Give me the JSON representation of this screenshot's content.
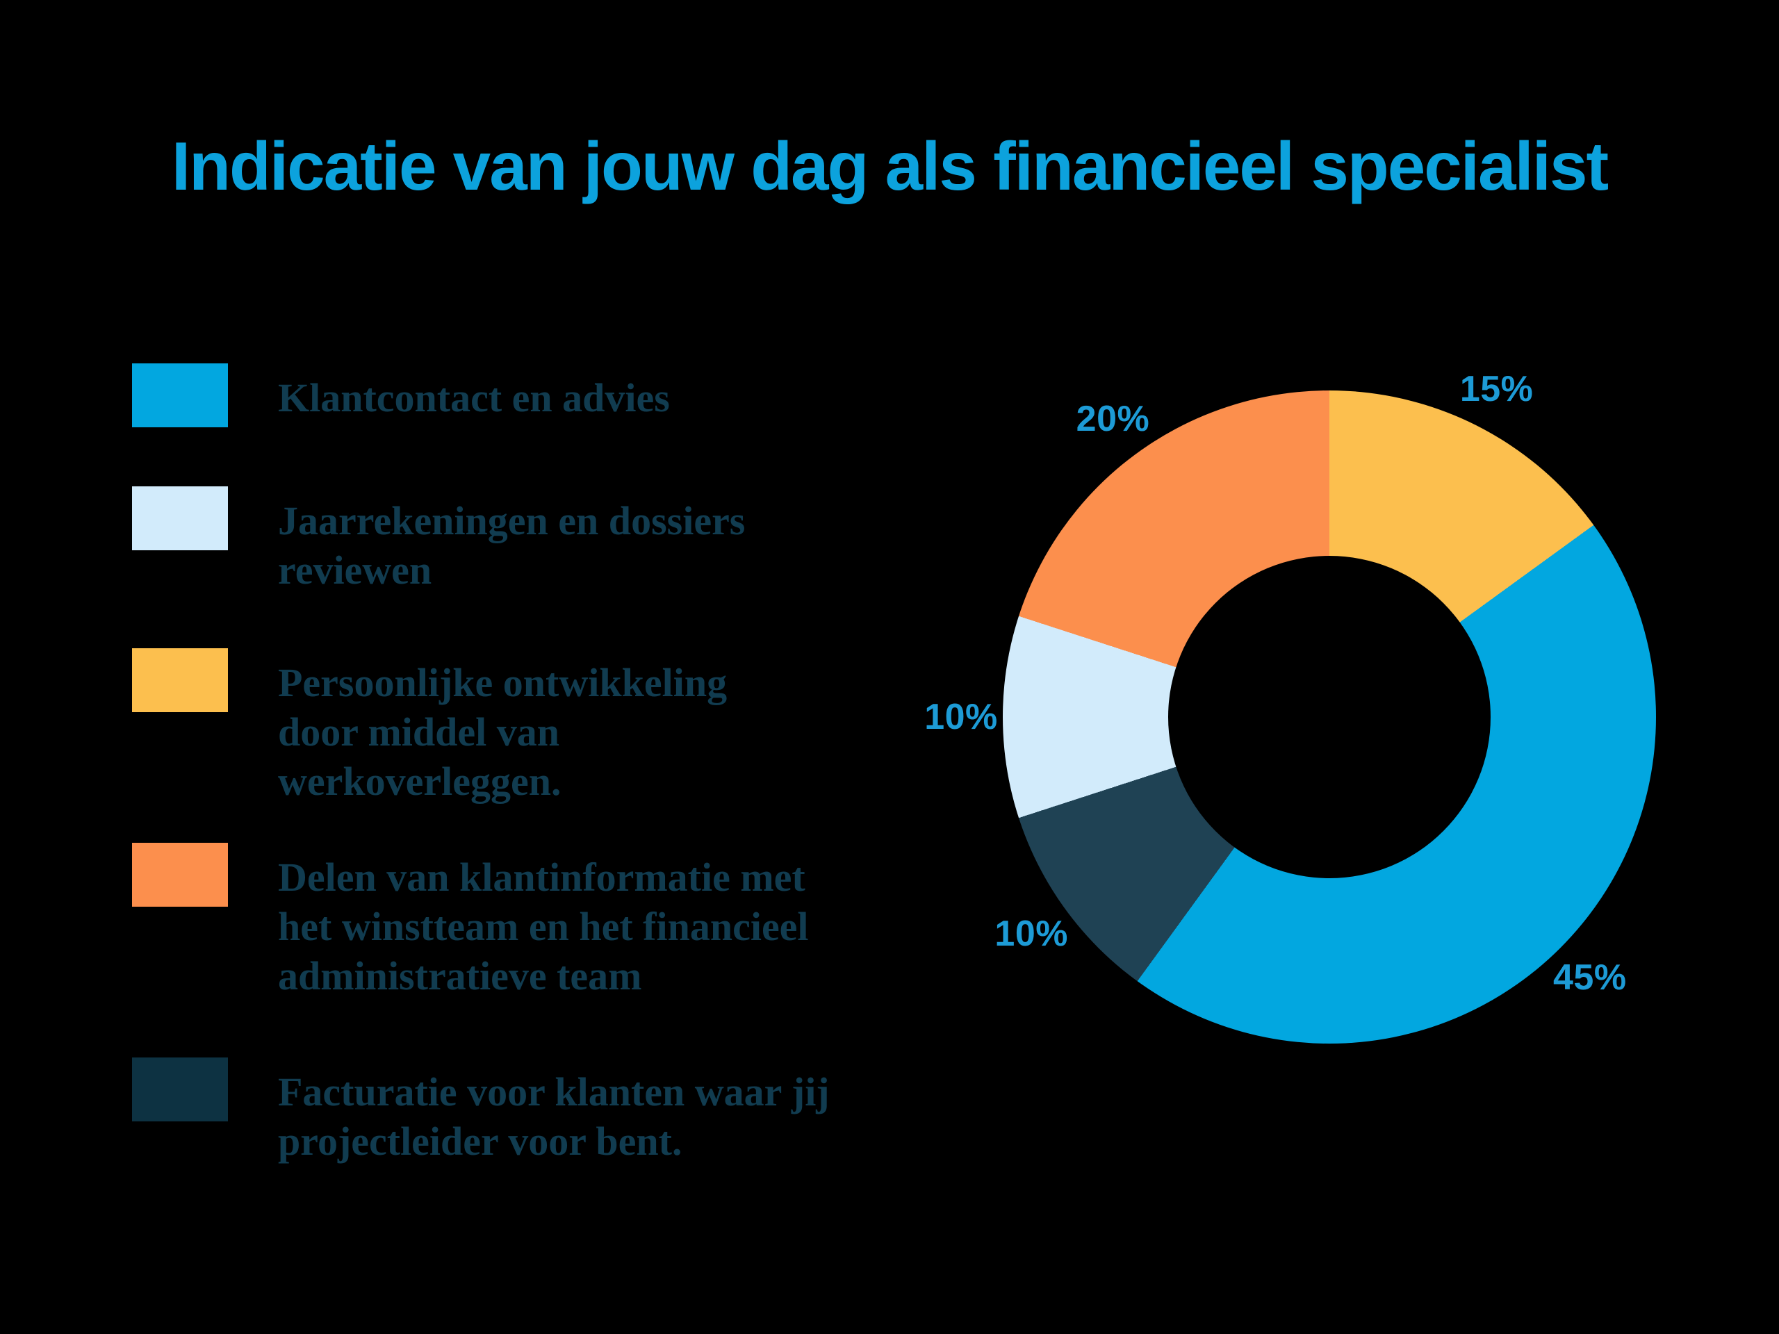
{
  "background": "#000000",
  "title": {
    "text": "Indicatie van jouw dag als financieel specialist",
    "color": "#0CA2DD"
  },
  "legend": {
    "text_color": "#113C50",
    "items": [
      {
        "label": "Klantcontact en advies",
        "color": "#02A7E0"
      },
      {
        "label": "Jaarrekeningen en dossiers\nreviewen",
        "color": "#D2EBFB"
      },
      {
        "label": "Persoonlijke ontwikkeling\ndoor middel van\nwerkoverleggen.",
        "color": "#FCBF4E"
      },
      {
        "label": "Delen van klantinformatie met\nhet winstteam en het financieel\nadministratieve team",
        "color": "#FC8F4D"
      },
      {
        "label": "Facturatie voor klanten waar jij\nprojectleider voor bent.",
        "color": "#0D3242"
      }
    ]
  },
  "chart_data": {
    "type": "pie",
    "subtype": "donut",
    "title": "Indicatie van jouw dag als financieel specialist",
    "start_angle_deg": 0,
    "direction": "clockwise",
    "inner_radius_ratio": 0.49,
    "label_color": "#1D9BD6",
    "label_radius_px": 530,
    "legend_position": "left",
    "segments": [
      {
        "label": "Persoonlijke ontwikkeling door middel van werkoverleggen.",
        "value_percent": 15,
        "display": "15%",
        "color": "#FCBF4E"
      },
      {
        "label": "Klantcontact en advies",
        "value_percent": 45,
        "display": "45%",
        "color": "#02A7E0"
      },
      {
        "label": "Facturatie voor klanten waar jij projectleider voor bent.",
        "value_percent": 10,
        "display": "10%",
        "color": "#1F4254"
      },
      {
        "label": "Jaarrekeningen en dossiers reviewen",
        "value_percent": 10,
        "display": "10%",
        "color": "#D2EBFB"
      },
      {
        "label": "Delen van klantinformatie met het winstteam en het financieel administratieve team",
        "value_percent": 20,
        "display": "20%",
        "color": "#FC8F4D"
      }
    ]
  }
}
